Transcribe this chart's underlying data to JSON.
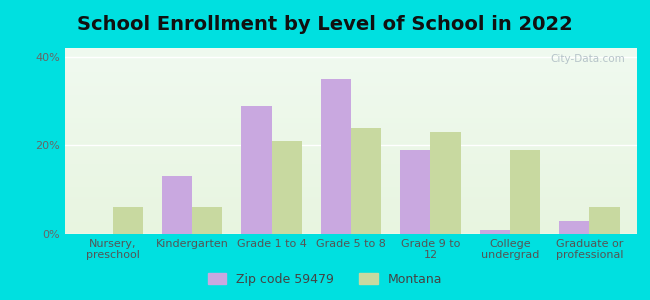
{
  "title": "School Enrollment by Level of School in 2022",
  "categories": [
    "Nursery,\npreschool",
    "Kindergarten",
    "Grade 1 to 4",
    "Grade 5 to 8",
    "Grade 9 to\n12",
    "College\nundergrad",
    "Graduate or\nprofessional"
  ],
  "zip_values": [
    0.0,
    13.0,
    29.0,
    35.0,
    19.0,
    1.0,
    3.0
  ],
  "montana_values": [
    6.0,
    6.0,
    21.0,
    24.0,
    23.0,
    19.0,
    6.0
  ],
  "zip_color": "#c9a8e0",
  "montana_color": "#c8d9a0",
  "background_color": "#00e0e0",
  "ylim": [
    0,
    42
  ],
  "yticks": [
    0,
    20,
    40
  ],
  "legend_zip_label": "Zip code 59479",
  "legend_montana_label": "Montana",
  "bar_width": 0.38,
  "title_fontsize": 14,
  "tick_fontsize": 8.0,
  "legend_fontsize": 9,
  "watermark_text": "City-Data.com",
  "watermark_color": "#b0bec5"
}
